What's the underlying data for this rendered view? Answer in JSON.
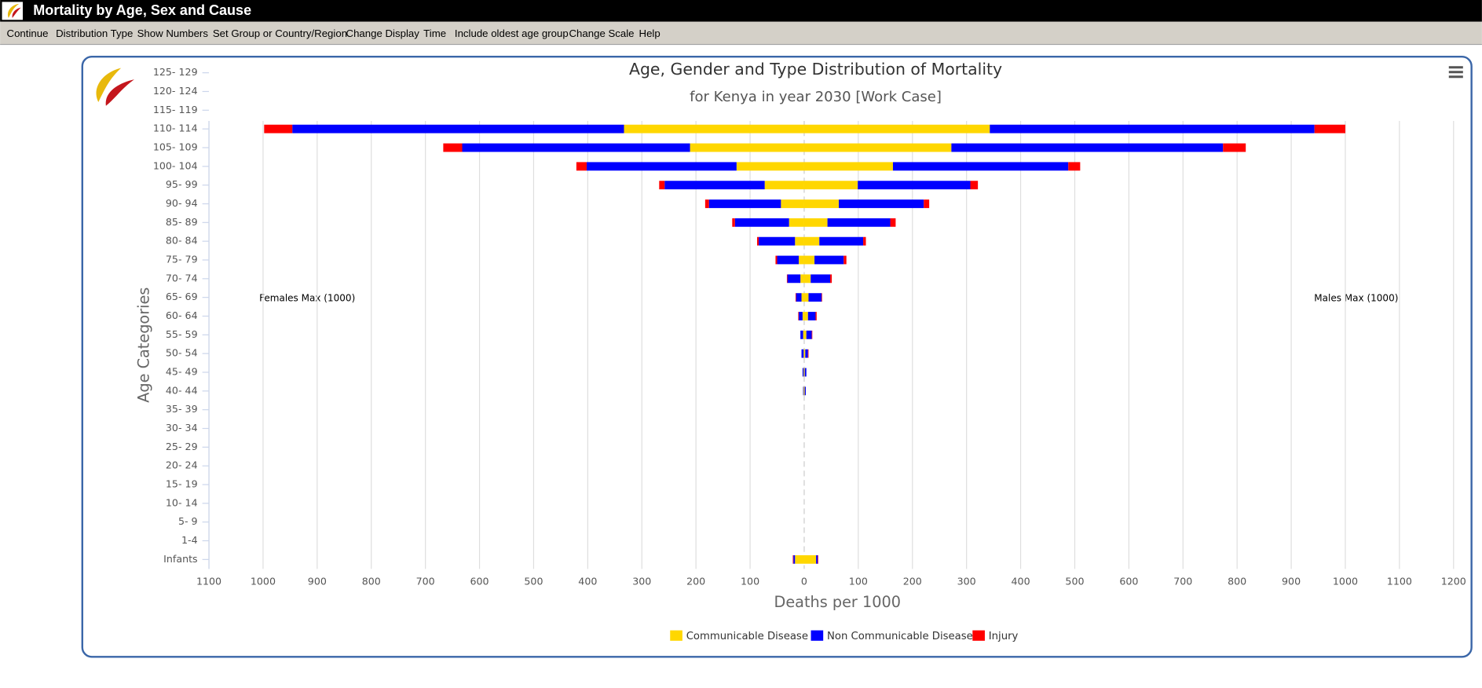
{
  "app": {
    "title": "Mortality by Age, Sex and Cause",
    "menu": [
      "Continue",
      "Distribution Type",
      "Show Numbers",
      "Set Group or Country/Region",
      "Change Display",
      "Time",
      "Include oldest age group",
      "Change Scale",
      "Help"
    ]
  },
  "chart_data": {
    "type": "pyramid",
    "title": "Age, Gender and Type Distribution of Mortality",
    "subtitle": "for Kenya in year 2030 [Work Case]",
    "y_label": "Age Categories",
    "x_label": "Deaths per 1000",
    "left_annotation": "Females Max (1000)",
    "right_annotation": "Males Max (1000)",
    "categories": [
      "125- 129",
      "120- 124",
      "115- 119",
      "110- 114",
      "105- 109",
      "100- 104",
      "95- 99",
      "90- 94",
      "85- 89",
      "80- 84",
      "75- 79",
      "70- 74",
      "65- 69",
      "60- 64",
      "55- 59",
      "50- 54",
      "45- 49",
      "40- 44",
      "35- 39",
      "30- 34",
      "25- 29",
      "20- 24",
      "15- 19",
      "10- 14",
      "5- 9",
      "1-4",
      "Infants"
    ],
    "series": [
      {
        "name": "Communicable Disease",
        "color": "#ffd700",
        "females": [
          0,
          0,
          0,
          333,
          211,
          125,
          73,
          43,
          28,
          17,
          10,
          7,
          5,
          3,
          2,
          1,
          1,
          1,
          0,
          0,
          0,
          0,
          0,
          0,
          0,
          0,
          17
        ],
        "males": [
          0,
          0,
          0,
          343,
          272,
          164,
          99,
          64,
          43,
          28,
          19,
          12,
          8,
          7,
          4,
          2,
          1,
          1,
          0,
          0,
          0,
          0,
          0,
          0,
          0,
          0,
          22
        ]
      },
      {
        "name": "Non Communicable Disease",
        "color": "#0000ff",
        "females": [
          0,
          0,
          0,
          613,
          421,
          277,
          185,
          133,
          100,
          67,
          40,
          24,
          10,
          7,
          5,
          4,
          2,
          1,
          0,
          0,
          0,
          0,
          0,
          0,
          0,
          0,
          3
        ],
        "males": [
          0,
          0,
          0,
          600,
          502,
          324,
          208,
          157,
          116,
          81,
          54,
          36,
          24,
          14,
          10,
          5,
          3,
          2,
          0,
          0,
          0,
          0,
          0,
          0,
          0,
          0,
          3
        ]
      },
      {
        "name": "Injury",
        "color": "#ff0000",
        "females": [
          0,
          0,
          0,
          52,
          35,
          19,
          10,
          7,
          5,
          3,
          3,
          1,
          1,
          1,
          0,
          0,
          0,
          0,
          0,
          0,
          0,
          0,
          0,
          0,
          0,
          0,
          1
        ],
        "males": [
          0,
          0,
          0,
          57,
          42,
          22,
          14,
          10,
          10,
          5,
          5,
          3,
          1,
          2,
          1,
          1,
          0,
          0,
          0,
          0,
          0,
          0,
          0,
          0,
          0,
          0,
          1
        ]
      }
    ],
    "xlim": [
      -1100,
      1200
    ],
    "xticks": [
      {
        "value": -1100,
        "label": "1100"
      },
      {
        "value": -1000,
        "label": "1000"
      },
      {
        "value": -900,
        "label": "900"
      },
      {
        "value": -800,
        "label": "800"
      },
      {
        "value": -700,
        "label": "700"
      },
      {
        "value": -600,
        "label": "600"
      },
      {
        "value": -500,
        "label": "500"
      },
      {
        "value": -400,
        "label": "400"
      },
      {
        "value": -300,
        "label": "300"
      },
      {
        "value": -200,
        "label": "200"
      },
      {
        "value": -100,
        "label": "100"
      },
      0,
      100,
      200,
      300,
      400,
      500,
      600,
      700,
      800,
      900,
      1000,
      1100,
      1200
    ],
    "grid": true
  }
}
